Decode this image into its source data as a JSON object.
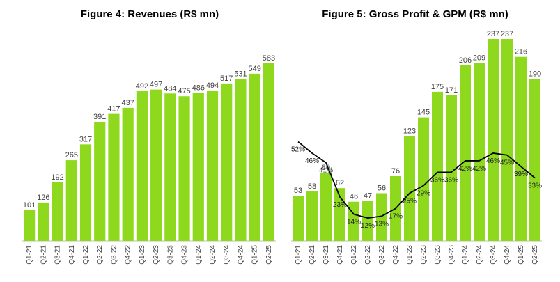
{
  "colors": {
    "bar": "#8ed81e",
    "line": "#000000",
    "axis": "#bfbfbf"
  },
  "chart_data": [
    {
      "type": "bar",
      "title": "Figure 4: Revenues (R$ mn)",
      "categories": [
        "Q1-21",
        "Q2-21",
        "Q3-21",
        "Q4-21",
        "Q1-22",
        "Q2-22",
        "Q3-22",
        "Q4-22",
        "Q1-23",
        "Q2-23",
        "Q3-23",
        "Q4-23",
        "Q1-24",
        "Q2-24",
        "Q3-24",
        "Q4-24",
        "Q1-25",
        "Q2-25"
      ],
      "values": [
        101,
        126,
        192,
        265,
        317,
        391,
        417,
        437,
        492,
        497,
        484,
        475,
        486,
        494,
        517,
        531,
        549,
        583
      ],
      "ylim": [
        0,
        583
      ]
    },
    {
      "type": "bar",
      "title": "Figure 5: Gross Profit & GPM (R$ mn)",
      "categories": [
        "Q1-21",
        "Q2-21",
        "Q3-21",
        "Q4-21",
        "Q1-22",
        "Q2-22",
        "Q3-22",
        "Q4-22",
        "Q1-23",
        "Q2-23",
        "Q3-23",
        "Q4-23",
        "Q1-24",
        "Q2-24",
        "Q3-24",
        "Q4-24",
        "Q1-25",
        "Q2-25"
      ],
      "values": [
        53,
        58,
        80,
        62,
        46,
        47,
        56,
        76,
        123,
        145,
        175,
        171,
        206,
        209,
        237,
        237,
        216,
        190
      ],
      "ylim": [
        0,
        237
      ],
      "line_series": {
        "values": [
          52,
          46,
          41,
          23,
          14,
          12,
          13,
          17,
          25,
          29,
          36,
          36,
          42,
          42,
          46,
          45,
          39,
          33
        ],
        "labels": [
          "52%",
          "46%",
          "41%",
          "23%",
          "14%",
          "12%",
          "13%",
          "17%",
          "25%",
          "29%",
          "36%",
          "36%",
          "42%",
          "42%",
          "46%",
          "45%",
          "39%",
          "33%"
        ],
        "ylim": [
          0,
          100
        ]
      }
    }
  ]
}
